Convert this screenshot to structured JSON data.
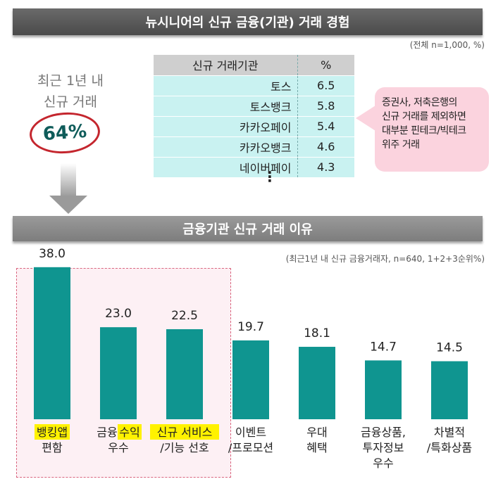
{
  "top_banner": "뉴시니어의 신규 금융(기관) 거래 경험",
  "top_note": "(전체 n=1,000, %)",
  "left_label_line1": "최근 1년 내",
  "left_label_line2": "신규 거래",
  "left_pct": "64%",
  "table": {
    "header_name": "신규 거래기관",
    "header_pct": "%",
    "rows": [
      {
        "name": "토스",
        "pct": "6.5"
      },
      {
        "name": "토스뱅크",
        "pct": "5.8"
      },
      {
        "name": "카카오페이",
        "pct": "5.4"
      },
      {
        "name": "카카오뱅크",
        "pct": "4.6"
      },
      {
        "name": "네이버페이",
        "pct": "4.3"
      }
    ],
    "ellipsis": "⋮"
  },
  "callout": [
    "증권사, 저축은행의",
    "신규 거래를 제외하면",
    "대부분 핀테크/빅테크",
    "위주 거래"
  ],
  "bottom_banner": "금융기관 신규 거래 이유",
  "bottom_note": "(최근1년 내 신규 금융거래자, n=640, 1+2+3순위%)",
  "colors": {
    "bar": "#0f9590",
    "highlight": "#fff200",
    "pink_box": "#fdf0f4"
  },
  "chart_data": {
    "type": "bar",
    "title": "금융기관 신규 거래 이유",
    "ylim": [
      0,
      45
    ],
    "categories": [
      [
        {
          "t": "뱅킹앱",
          "hl": true
        },
        {
          "t": "편함",
          "hl": false
        }
      ],
      [
        {
          "t": "금융",
          "hl": false,
          "inline_next": true
        },
        {
          "t": "수익",
          "hl": true
        },
        {
          "t": "우수",
          "hl": false
        }
      ],
      [
        {
          "t": "신규 서비스",
          "hl": true
        },
        {
          "t": "/기능 선호",
          "hl": false
        }
      ],
      [
        {
          "t": "이벤트",
          "hl": false
        },
        {
          "t": "/프로모션",
          "hl": false
        }
      ],
      [
        {
          "t": "우대",
          "hl": false
        },
        {
          "t": "혜택",
          "hl": false
        }
      ],
      [
        {
          "t": "금융상품,",
          "hl": false
        },
        {
          "t": "투자정보",
          "hl": false
        },
        {
          "t": "우수",
          "hl": false
        }
      ],
      [
        {
          "t": "차별적",
          "hl": false
        },
        {
          "t": "/특화상품",
          "hl": false
        }
      ]
    ],
    "values": [
      38.0,
      23.0,
      22.5,
      19.7,
      18.1,
      14.7,
      14.5
    ],
    "value_labels": [
      "38.0",
      "23.0",
      "22.5",
      "19.7",
      "18.1",
      "14.7",
      "14.5"
    ]
  }
}
